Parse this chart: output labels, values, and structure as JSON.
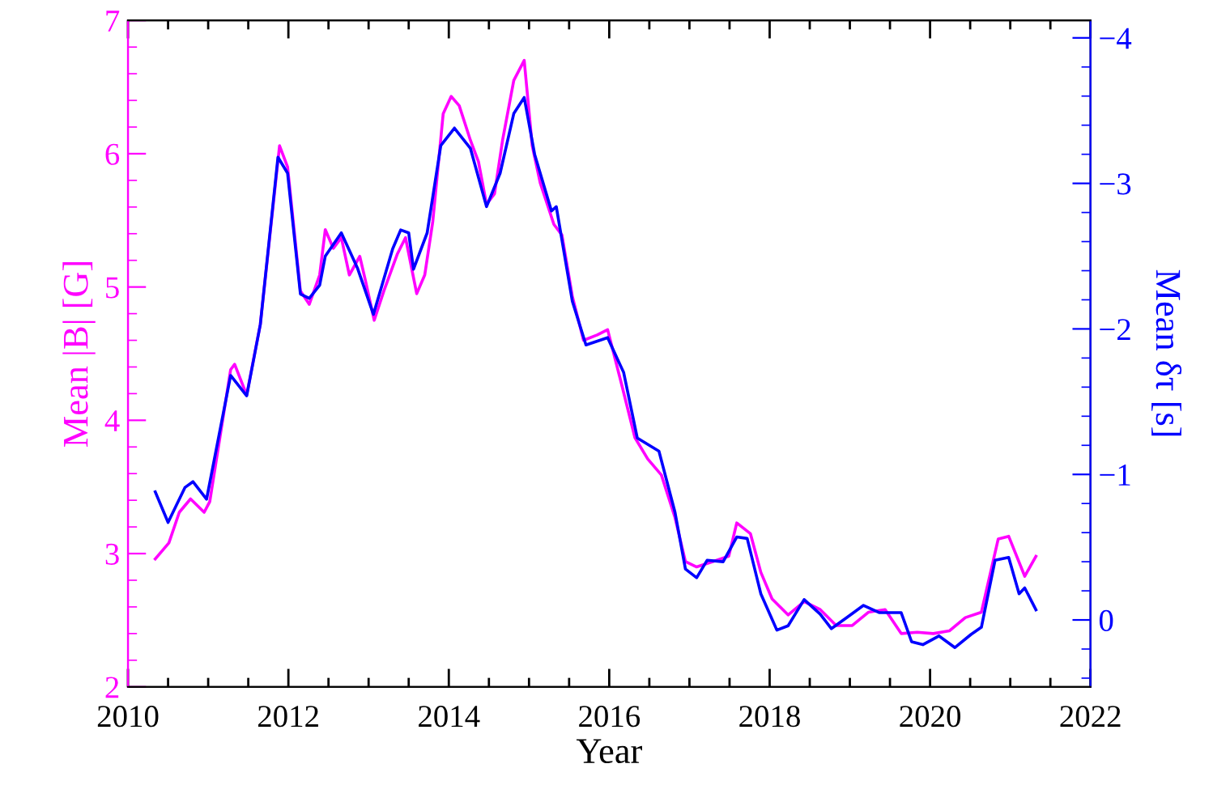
{
  "chart_data": {
    "type": "line",
    "xlabel": "Year",
    "ylabel": "Mean |B| [G]",
    "y2label": "Mean δτ [s]",
    "grid": false,
    "marker": "none",
    "line_style": "solid",
    "xlim": [
      2010,
      2022
    ],
    "xticks": [
      2010,
      {
        "value": 2010.5,
        "label": null
      },
      {
        "value": 2011,
        "label": null
      },
      {
        "value": 2011.5,
        "label": null
      },
      2012,
      {
        "value": 2012.5,
        "label": null
      },
      {
        "value": 2013,
        "label": null
      },
      {
        "value": 2013.5,
        "label": null
      },
      2014,
      {
        "value": 2014.5,
        "label": null
      },
      {
        "value": 2015,
        "label": null
      },
      {
        "value": 2015.5,
        "label": null
      },
      2016,
      {
        "value": 2016.5,
        "label": null
      },
      {
        "value": 2017,
        "label": null
      },
      {
        "value": 2017.5,
        "label": null
      },
      2018,
      {
        "value": 2018.5,
        "label": null
      },
      {
        "value": 2019,
        "label": null
      },
      {
        "value": 2019.5,
        "label": null
      },
      2020,
      {
        "value": 2020.5,
        "label": null
      },
      {
        "value": 2021,
        "label": null
      },
      {
        "value": 2021.5,
        "label": null
      },
      2022
    ],
    "ylim": [
      2,
      7
    ],
    "yticks": [
      2,
      {
        "value": 2.2,
        "label": null
      },
      {
        "value": 2.4,
        "label": null
      },
      {
        "value": 2.6,
        "label": null
      },
      {
        "value": 2.8,
        "label": null
      },
      3,
      {
        "value": 3.2,
        "label": null
      },
      {
        "value": 3.4,
        "label": null
      },
      {
        "value": 3.6,
        "label": null
      },
      {
        "value": 3.8,
        "label": null
      },
      4,
      {
        "value": 4.2,
        "label": null
      },
      {
        "value": 4.4,
        "label": null
      },
      {
        "value": 4.6,
        "label": null
      },
      {
        "value": 4.8,
        "label": null
      },
      5,
      {
        "value": 5.2,
        "label": null
      },
      {
        "value": 5.4,
        "label": null
      },
      {
        "value": 5.6,
        "label": null
      },
      {
        "value": 5.8,
        "label": null
      },
      6,
      {
        "value": 6.2,
        "label": null
      },
      {
        "value": 6.4,
        "label": null
      },
      {
        "value": 6.6,
        "label": null
      },
      {
        "value": 6.8,
        "label": null
      },
      7
    ],
    "y2lim": [
      0.46,
      -4.12
    ],
    "y2ticks": [
      {
        "value": 0.4,
        "label": null
      },
      {
        "value": 0.2,
        "label": null
      },
      0,
      {
        "value": -0.2,
        "label": null
      },
      {
        "value": -0.4,
        "label": null
      },
      {
        "value": -0.6,
        "label": null
      },
      {
        "value": -0.8,
        "label": null
      },
      {
        "value": -1,
        "label": "−1"
      },
      {
        "value": -1.2,
        "label": null
      },
      {
        "value": -1.4,
        "label": null
      },
      {
        "value": -1.6,
        "label": null
      },
      {
        "value": -1.8,
        "label": null
      },
      {
        "value": -2,
        "label": "−2"
      },
      {
        "value": -2.2,
        "label": null
      },
      {
        "value": -2.4,
        "label": null
      },
      {
        "value": -2.6,
        "label": null
      },
      {
        "value": -2.8,
        "label": null
      },
      {
        "value": -3,
        "label": "−3"
      },
      {
        "value": -3.2,
        "label": null
      },
      {
        "value": -3.4,
        "label": null
      },
      {
        "value": -3.6,
        "label": null
      },
      {
        "value": -3.8,
        "label": null
      },
      {
        "value": -4,
        "label": "−4"
      }
    ],
    "series": [
      {
        "color": "#ff00ff",
        "x": [
          2010.34,
          2010.51,
          2010.64,
          2010.78,
          2010.95,
          2011.02,
          2011.28,
          2011.33,
          2011.48,
          2011.65,
          2011.89,
          2011.99,
          2012.15,
          2012.26,
          2012.39,
          2012.46,
          2012.56,
          2012.66,
          2012.76,
          2012.89,
          2012.96,
          2013.07,
          2013.19,
          2013.36,
          2013.46,
          2013.6,
          2013.7,
          2013.8,
          2013.93,
          2014.03,
          2014.13,
          2014.27,
          2014.37,
          2014.47,
          2014.57,
          2014.67,
          2014.81,
          2014.94,
          2015.04,
          2015.14,
          2015.31,
          2015.41,
          2015.54,
          2015.68,
          2015.85,
          2015.98,
          2016.15,
          2016.32,
          2016.48,
          2016.65,
          2016.82,
          2016.95,
          2017.09,
          2017.29,
          2017.49,
          2017.59,
          2017.76,
          2017.89,
          2018.03,
          2018.23,
          2018.43,
          2018.63,
          2018.83,
          2019.03,
          2019.23,
          2019.44,
          2019.64,
          2019.84,
          2020.04,
          2020.24,
          2020.44,
          2020.64,
          2020.85,
          2020.98,
          2021.18,
          2021.32
        ],
        "values": [
          2.96,
          3.08,
          3.31,
          3.41,
          3.31,
          3.39,
          4.38,
          4.42,
          4.19,
          4.72,
          6.06,
          5.9,
          4.97,
          4.87,
          5.09,
          5.43,
          5.29,
          5.37,
          5.09,
          5.23,
          5.05,
          4.75,
          4.97,
          5.25,
          5.37,
          4.95,
          5.09,
          5.49,
          6.3,
          6.43,
          6.36,
          6.1,
          5.94,
          5.62,
          5.7,
          6.1,
          6.55,
          6.7,
          6.06,
          5.78,
          5.47,
          5.39,
          4.93,
          4.6,
          4.64,
          4.68,
          4.28,
          3.87,
          3.71,
          3.59,
          3.27,
          2.94,
          2.9,
          2.94,
          2.98,
          3.23,
          3.15,
          2.86,
          2.66,
          2.54,
          2.64,
          2.58,
          2.46,
          2.46,
          2.56,
          2.58,
          2.4,
          2.41,
          2.4,
          2.42,
          2.52,
          2.56,
          3.11,
          3.13,
          2.83,
          2.98
        ]
      },
      {
        "color": "#0000ff",
        "axis": "y2",
        "x": [
          2010.34,
          2010.5,
          2010.71,
          2010.81,
          2010.98,
          2011.28,
          2011.48,
          2011.65,
          2011.87,
          2011.99,
          2012.15,
          2012.26,
          2012.39,
          2012.46,
          2012.66,
          2012.86,
          2013.06,
          2013.3,
          2013.4,
          2013.5,
          2013.56,
          2013.73,
          2013.9,
          2014.07,
          2014.27,
          2014.47,
          2014.64,
          2014.81,
          2014.94,
          2015.07,
          2015.28,
          2015.34,
          2015.54,
          2015.71,
          2015.98,
          2016.18,
          2016.35,
          2016.62,
          2016.82,
          2016.95,
          2017.09,
          2017.22,
          2017.42,
          2017.59,
          2017.72,
          2017.89,
          2018.09,
          2018.23,
          2018.43,
          2018.63,
          2018.77,
          2018.97,
          2019.17,
          2019.37,
          2019.64,
          2019.77,
          2019.91,
          2020.11,
          2020.31,
          2020.51,
          2020.64,
          2020.81,
          2020.98,
          2021.11,
          2021.18,
          2021.32
        ],
        "values": [
          -0.88,
          -0.67,
          -0.91,
          -0.95,
          -0.83,
          -1.68,
          -1.54,
          -2.03,
          -3.18,
          -3.07,
          -2.24,
          -2.21,
          -2.3,
          -2.5,
          -2.66,
          -2.42,
          -2.1,
          -2.55,
          -2.68,
          -2.66,
          -2.41,
          -2.66,
          -3.26,
          -3.38,
          -3.24,
          -2.84,
          -3.07,
          -3.48,
          -3.59,
          -3.2,
          -2.81,
          -2.84,
          -2.19,
          -1.89,
          -1.94,
          -1.7,
          -1.25,
          -1.16,
          -0.74,
          -0.35,
          -0.29,
          -0.41,
          -0.4,
          -0.57,
          -0.56,
          -0.18,
          0.07,
          0.04,
          -0.14,
          -0.04,
          0.06,
          -0.02,
          -0.1,
          -0.05,
          -0.05,
          0.15,
          0.17,
          0.11,
          0.19,
          0.1,
          0.05,
          -0.41,
          -0.43,
          -0.18,
          -0.22,
          -0.07
        ]
      }
    ]
  }
}
